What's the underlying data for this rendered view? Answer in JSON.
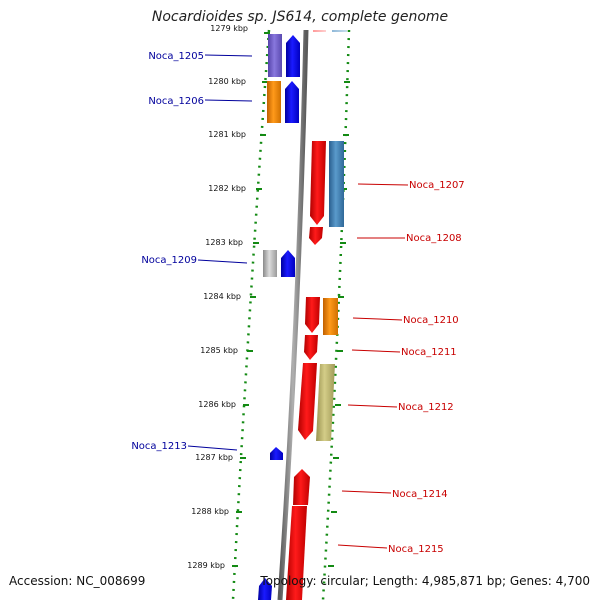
{
  "title": "Nocardioides sp. JS614, complete genome",
  "footer": {
    "accession": "Accession: NC_008699",
    "topology": "Topology: circular; Length: 4,985,871 bp; Genes: 4,700"
  },
  "ticks": [
    "1279 kbp",
    "1280 kbp",
    "1281 kbp",
    "1282 kbp",
    "1283 kbp",
    "1284 kbp",
    "1285 kbp",
    "1286 kbp",
    "1287 kbp",
    "1288 kbp",
    "1289 kbp"
  ],
  "labels": {
    "left": [
      "Noca_1205",
      "Noca_1206",
      "Noca_1209",
      "Noca_1213"
    ],
    "right": [
      "Noca_1207",
      "Noca_1208",
      "Noca_1210",
      "Noca_1211",
      "Noca_1212",
      "Noca_1214",
      "Noca_1215"
    ]
  },
  "colors": {
    "left_label": "#00009c",
    "right_label": "#c80000",
    "axis": "#808080",
    "dotted_track": "#138a13",
    "blue": "#0b0bff",
    "red": "#ff0000",
    "orange": "#ff8a00",
    "purple": "#7766cc",
    "steelblue": "#3f7fb5",
    "olive": "#bdb66f",
    "grey": "#bdbdbd"
  }
}
